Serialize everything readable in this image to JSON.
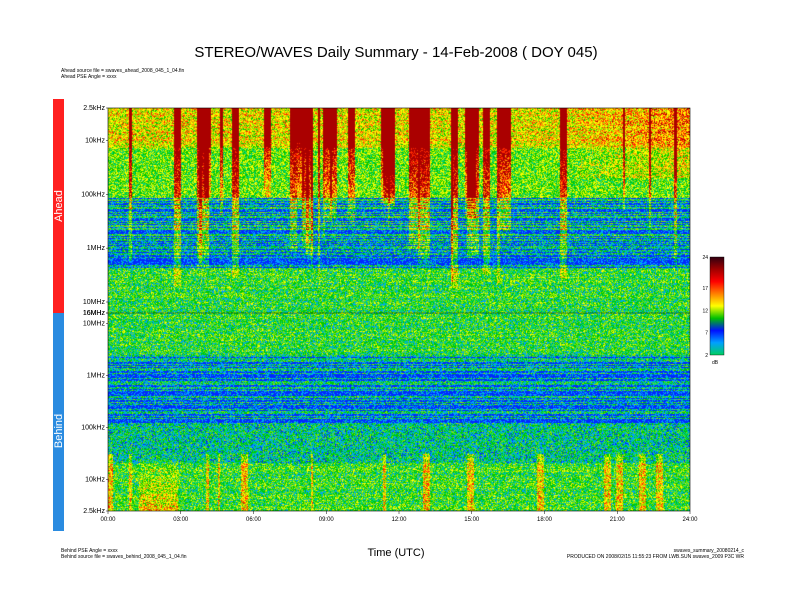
{
  "title": "STEREO/WAVES Daily Summary - 14-Feb-2008 ( DOY 045)",
  "ahead_meta": [
    "Ahead source file = swaves_ahead_2008_045_1_04.fin",
    "Ahead PSE Angle = xxxx"
  ],
  "behind_meta": [
    "Behind PSE Angle = xxxx",
    "Behind source file = swaves_behind_2008_045_1_04.fin"
  ],
  "production_meta": [
    "swaves_summary_20080214_c",
    "PRODUCED ON 2008/02/15 11:55:23 FROM LWB.SUN swaves_2009 P3C WR"
  ],
  "colors": {
    "ahead_bar": "#ff2020",
    "behind_bar": "#2a8be0",
    "colorbar_stops": [
      "#00d060",
      "#00a0ff",
      "#0010ff",
      "#00c000",
      "#ffff00",
      "#ff8000",
      "#ff0000",
      "#a00000",
      "#300010"
    ]
  },
  "chart_data": {
    "type": "heatmap",
    "title": "STEREO/WAVES Daily Summary - 14-Feb-2008 ( DOY 045)",
    "xlabel": "Time (UTC)",
    "x_ticks": [
      "00:00",
      "03:00",
      "06:00",
      "09:00",
      "12:00",
      "15:00",
      "18:00",
      "21:00",
      "24:00"
    ],
    "xlim": [
      "00:00",
      "24:00"
    ],
    "panels": [
      {
        "name": "Ahead",
        "y_scale": "log",
        "ylim": [
          "16MHz",
          "2.5kHz"
        ],
        "y_ticks": [
          "2.5kHz",
          "10kHz",
          "100kHz",
          "1MHz",
          "10MHz",
          "16MHz"
        ]
      },
      {
        "name": "Behind",
        "y_scale": "log",
        "ylim": [
          "2.5kHz",
          "16MHz"
        ],
        "y_ticks": [
          "16MHz",
          "10MHz",
          "1MHz",
          "100kHz",
          "10kHz",
          "2.5kHz"
        ]
      }
    ],
    "colorbar": {
      "unit": "dB",
      "ticks": [
        2,
        7,
        12,
        17,
        24
      ],
      "range": [
        2,
        24
      ]
    },
    "grid": false,
    "legend": "colorbar-right"
  }
}
